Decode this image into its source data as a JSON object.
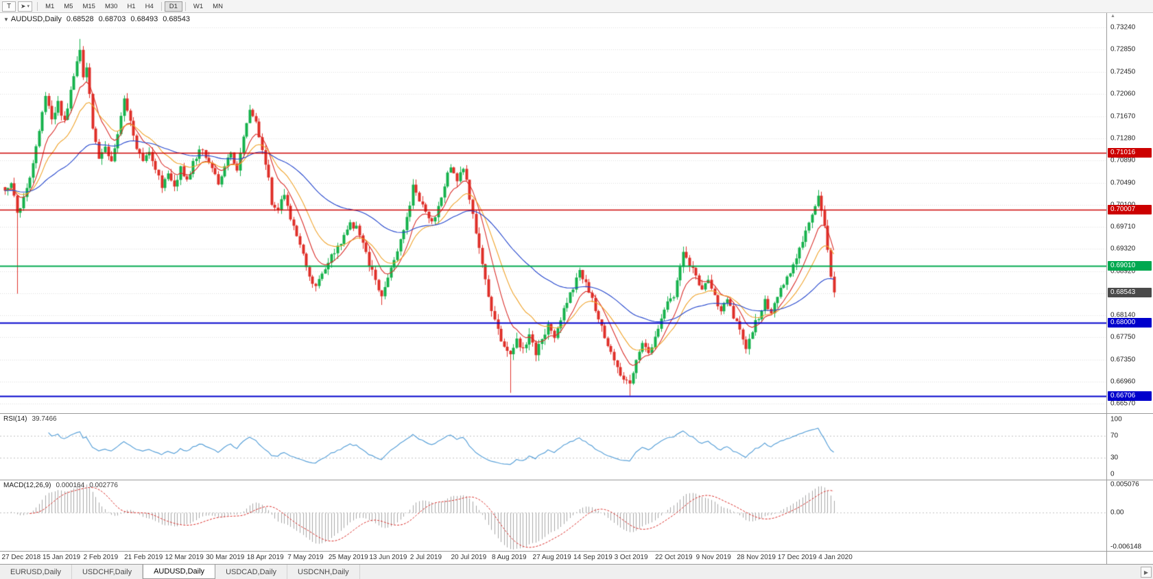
{
  "toolbar": {
    "text_tool": "T",
    "timeframes": [
      "M1",
      "M5",
      "M15",
      "M30",
      "H1",
      "H4",
      "D1",
      "W1",
      "MN"
    ],
    "active_timeframe": "D1"
  },
  "icons": {
    "cursor_tool": "➤",
    "dropdown_arrow": "▾",
    "collapse_arrow": "▼",
    "axis_scroll_up": "▲",
    "tab_scroll_right": "▶"
  },
  "main_chart": {
    "title": "AUDUSD,Daily",
    "open": "0.68528",
    "high": "0.68703",
    "low": "0.68493",
    "close": "0.68543"
  },
  "rsi_panel": {
    "label": "RSI(14)",
    "value": "39.7466"
  },
  "macd_panel": {
    "label": "MACD(12,26,9)",
    "value_main": "0.000164",
    "value_signal": "0.002776"
  },
  "tabs": {
    "items": [
      "EURUSD,Daily",
      "USDCHF,Daily",
      "AUDUSD,Daily",
      "USDCAD,Daily",
      "USDCNH,Daily"
    ],
    "active": "AUDUSD,Daily"
  },
  "chart_data": {
    "type": "candlestick",
    "symbol": "AUDUSD",
    "timeframe": "Daily",
    "price_axis_ticks": [
      "0.73240",
      "0.72850",
      "0.72450",
      "0.72060",
      "0.71670",
      "0.71280",
      "0.70890",
      "0.70490",
      "0.70100",
      "0.69710",
      "0.69320",
      "0.68920",
      "0.68530",
      "0.68140",
      "0.67750",
      "0.67350",
      "0.66960",
      "0.66570"
    ],
    "price_view_max": 0.735,
    "price_view_min": 0.664,
    "levels": [
      {
        "price": 0.71016,
        "label": "0.71016",
        "color": "#cc0000",
        "type": "resistance"
      },
      {
        "price": 0.70007,
        "label": "0.70007",
        "color": "#cc0000",
        "type": "resistance"
      },
      {
        "price": 0.6901,
        "label": "0.69010",
        "color": "#00a84f",
        "type": "support"
      },
      {
        "price": 0.68,
        "label": "0.68000",
        "color": "#0000cc",
        "type": "support"
      },
      {
        "price": 0.66706,
        "label": "0.66706",
        "color": "#0000cc",
        "type": "support"
      }
    ],
    "current_price": {
      "value": 0.68543,
      "label": "0.68543",
      "color": "#4a4a4a"
    },
    "total_candles": 265,
    "candle_up_color": "#16b24c",
    "candle_down_color": "#df2f28",
    "moving_averages": [
      {
        "period": 9,
        "color": "#d92b27"
      },
      {
        "period": 18,
        "color": "#efa126"
      },
      {
        "period": 55,
        "color": "#2143cc"
      }
    ],
    "close_anchors": [
      [
        0,
        0.7035
      ],
      [
        2,
        0.7048
      ],
      [
        4,
        0.6995
      ],
      [
        6,
        0.702
      ],
      [
        9,
        0.7085
      ],
      [
        11,
        0.714
      ],
      [
        13,
        0.72
      ],
      [
        15,
        0.7165
      ],
      [
        17,
        0.719
      ],
      [
        19,
        0.7155
      ],
      [
        21,
        0.7215
      ],
      [
        23,
        0.726
      ],
      [
        24,
        0.7288
      ],
      [
        25,
        0.724
      ],
      [
        26,
        0.7256
      ],
      [
        28,
        0.715
      ],
      [
        30,
        0.7095
      ],
      [
        32,
        0.7112
      ],
      [
        34,
        0.7085
      ],
      [
        36,
        0.714
      ],
      [
        38,
        0.7195
      ],
      [
        40,
        0.7155
      ],
      [
        42,
        0.711
      ],
      [
        44,
        0.7085
      ],
      [
        46,
        0.7105
      ],
      [
        48,
        0.7075
      ],
      [
        50,
        0.7045
      ],
      [
        52,
        0.707
      ],
      [
        54,
        0.704
      ],
      [
        56,
        0.7075
      ],
      [
        58,
        0.705
      ],
      [
        60,
        0.7085
      ],
      [
        62,
        0.7105
      ],
      [
        64,
        0.7098
      ],
      [
        66,
        0.7075
      ],
      [
        68,
        0.705
      ],
      [
        70,
        0.708
      ],
      [
        72,
        0.71
      ],
      [
        74,
        0.7075
      ],
      [
        76,
        0.713
      ],
      [
        78,
        0.718
      ],
      [
        80,
        0.716
      ],
      [
        82,
        0.711
      ],
      [
        84,
        0.7055
      ],
      [
        85,
        0.7015
      ],
      [
        87,
        0.7
      ],
      [
        89,
        0.703
      ],
      [
        91,
        0.6985
      ],
      [
        93,
        0.6955
      ],
      [
        95,
        0.692
      ],
      [
        97,
        0.6885
      ],
      [
        98,
        0.6865
      ],
      [
        100,
        0.6875
      ],
      [
        103,
        0.691
      ],
      [
        106,
        0.6935
      ],
      [
        108,
        0.6955
      ],
      [
        110,
        0.6975
      ],
      [
        112,
        0.6968
      ],
      [
        114,
        0.694
      ],
      [
        116,
        0.6905
      ],
      [
        118,
        0.6875
      ],
      [
        120,
        0.6848
      ],
      [
        122,
        0.6885
      ],
      [
        124,
        0.6915
      ],
      [
        126,
        0.6945
      ],
      [
        128,
        0.6985
      ],
      [
        130,
        0.704
      ],
      [
        132,
        0.7018
      ],
      [
        134,
        0.6995
      ],
      [
        136,
        0.6978
      ],
      [
        138,
        0.7005
      ],
      [
        140,
        0.7045
      ],
      [
        142,
        0.708
      ],
      [
        144,
        0.7052
      ],
      [
        146,
        0.7078
      ],
      [
        148,
        0.702
      ],
      [
        150,
        0.696
      ],
      [
        152,
        0.69
      ],
      [
        154,
        0.685
      ],
      [
        156,
        0.6802
      ],
      [
        158,
        0.6772
      ],
      [
        160,
        0.6748
      ],
      [
        161,
        0.674
      ],
      [
        163,
        0.6772
      ],
      [
        165,
        0.6752
      ],
      [
        167,
        0.6775
      ],
      [
        169,
        0.6748
      ],
      [
        171,
        0.6772
      ],
      [
        173,
        0.6795
      ],
      [
        175,
        0.6778
      ],
      [
        177,
        0.6805
      ],
      [
        179,
        0.6838
      ],
      [
        181,
        0.6862
      ],
      [
        183,
        0.689
      ],
      [
        185,
        0.6868
      ],
      [
        187,
        0.684
      ],
      [
        189,
        0.6808
      ],
      [
        191,
        0.6775
      ],
      [
        193,
        0.6745
      ],
      [
        195,
        0.672
      ],
      [
        197,
        0.67
      ],
      [
        199,
        0.6688
      ],
      [
        201,
        0.6735
      ],
      [
        203,
        0.6762
      ],
      [
        205,
        0.6742
      ],
      [
        207,
        0.6772
      ],
      [
        209,
        0.6808
      ],
      [
        211,
        0.6838
      ],
      [
        213,
        0.6845
      ],
      [
        215,
        0.69
      ],
      [
        216,
        0.6928
      ],
      [
        218,
        0.6898
      ],
      [
        220,
        0.6888
      ],
      [
        222,
        0.6856
      ],
      [
        224,
        0.6875
      ],
      [
        226,
        0.6845
      ],
      [
        228,
        0.6818
      ],
      [
        230,
        0.6842
      ],
      [
        232,
        0.6812
      ],
      [
        234,
        0.6788
      ],
      [
        236,
        0.6758
      ],
      [
        238,
        0.6788
      ],
      [
        240,
        0.6812
      ],
      [
        242,
        0.6838
      ],
      [
        244,
        0.682
      ],
      [
        246,
        0.685
      ],
      [
        248,
        0.6868
      ],
      [
        250,
        0.6892
      ],
      [
        252,
        0.6916
      ],
      [
        254,
        0.6945
      ],
      [
        256,
        0.6978
      ],
      [
        258,
        0.7012
      ],
      [
        259,
        0.703
      ],
      [
        260,
        0.7002
      ],
      [
        261,
        0.6972
      ],
      [
        262,
        0.6928
      ],
      [
        263,
        0.6885
      ],
      [
        264,
        0.68543
      ]
    ],
    "wick_extremes": [
      {
        "i": 4,
        "low": 0.6852
      },
      {
        "i": 24,
        "high": 0.7304
      },
      {
        "i": 120,
        "low": 0.6832
      },
      {
        "i": 161,
        "low": 0.6676
      },
      {
        "i": 199,
        "low": 0.6671
      },
      {
        "i": 259,
        "high": 0.7036
      }
    ],
    "x_labels": [
      {
        "i": 0,
        "t": "27 Dec 2018"
      },
      {
        "i": 13,
        "t": "15 Jan 2019"
      },
      {
        "i": 26,
        "t": "2 Feb 2019"
      },
      {
        "i": 39,
        "t": "21 Feb 2019"
      },
      {
        "i": 52,
        "t": "12 Mar 2019"
      },
      {
        "i": 65,
        "t": "30 Mar 2019"
      },
      {
        "i": 78,
        "t": "18 Apr 2019"
      },
      {
        "i": 91,
        "t": "7 May 2019"
      },
      {
        "i": 104,
        "t": "25 May 2019"
      },
      {
        "i": 117,
        "t": "13 Jun 2019"
      },
      {
        "i": 130,
        "t": "2 Jul 2019"
      },
      {
        "i": 143,
        "t": "20 Jul 2019"
      },
      {
        "i": 156,
        "t": "8 Aug 2019"
      },
      {
        "i": 169,
        "t": "27 Aug 2019"
      },
      {
        "i": 182,
        "t": "14 Sep 2019"
      },
      {
        "i": 195,
        "t": "3 Oct 2019"
      },
      {
        "i": 208,
        "t": "22 Oct 2019"
      },
      {
        "i": 221,
        "t": "9 Nov 2019"
      },
      {
        "i": 234,
        "t": "28 Nov 2019"
      },
      {
        "i": 247,
        "t": "17 Dec 2019"
      },
      {
        "i": 260,
        "t": "4 Jan 2020"
      }
    ],
    "rsi": {
      "period": 14,
      "color": "#58a0d8",
      "axis_ticks": [
        "100",
        "70",
        "30",
        "0"
      ],
      "levels": [
        70,
        30
      ],
      "current": 39.7466
    },
    "macd": {
      "fast": 12,
      "slow": 26,
      "signal": 9,
      "hist_color": "#a6a6a6",
      "signal_color": "#d92b27",
      "axis_ticks": [
        "0.005076",
        "0.00",
        "-0.006148"
      ],
      "axis_max": 0.005076,
      "axis_min": -0.006148
    }
  }
}
